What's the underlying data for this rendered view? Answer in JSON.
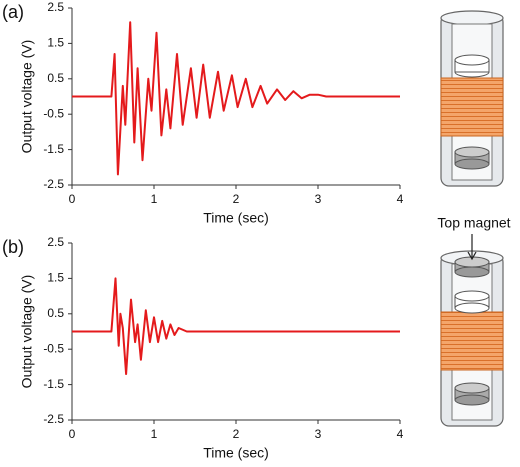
{
  "chart_data": [
    {
      "type": "line",
      "panel_label": "(a)",
      "x_label": "Time (sec)",
      "y_label": "Output voltage (V)",
      "xlim": [
        0,
        4
      ],
      "xticks": [
        0,
        1,
        2,
        3,
        4
      ],
      "ylim": [
        -2.5,
        2.5
      ],
      "yticks": [
        -2.5,
        -1.5,
        -0.5,
        0.5,
        1.5,
        2.5
      ],
      "grid": false,
      "color": "#e41a1c",
      "x": [
        0,
        0.48,
        0.52,
        0.56,
        0.62,
        0.65,
        0.71,
        0.76,
        0.8,
        0.86,
        0.93,
        0.97,
        1.03,
        1.09,
        1.15,
        1.2,
        1.28,
        1.35,
        1.45,
        1.52,
        1.6,
        1.68,
        1.78,
        1.85,
        1.95,
        2.02,
        2.12,
        2.2,
        2.3,
        2.38,
        2.5,
        2.6,
        2.7,
        2.8,
        2.9,
        3.0,
        3.1,
        4
      ],
      "values": [
        0,
        0,
        1.2,
        -2.2,
        0.3,
        -0.8,
        2.1,
        -1.3,
        0.8,
        -1.8,
        0.5,
        -0.4,
        1.8,
        -1.1,
        0.2,
        -0.9,
        1.2,
        -0.8,
        0.8,
        -0.6,
        0.9,
        -0.6,
        0.7,
        -0.4,
        0.6,
        -0.3,
        0.5,
        -0.3,
        0.3,
        -0.2,
        0.2,
        -0.1,
        0.15,
        -0.05,
        0.05,
        0.05,
        0,
        0
      ]
    },
    {
      "type": "line",
      "panel_label": "(b)",
      "x_label": "Time (sec)",
      "y_label": "Output voltage (V)",
      "annotation": "Top magnet",
      "xlim": [
        0,
        4
      ],
      "xticks": [
        0,
        1,
        2,
        3,
        4
      ],
      "ylim": [
        -2.5,
        2.5
      ],
      "yticks": [
        -2.5,
        -1.5,
        -0.5,
        0.5,
        1.5,
        2.5
      ],
      "grid": false,
      "color": "#e41a1c",
      "x": [
        0,
        0.48,
        0.53,
        0.57,
        0.59,
        0.62,
        0.66,
        0.72,
        0.77,
        0.8,
        0.84,
        0.9,
        0.95,
        1.0,
        1.05,
        1.1,
        1.15,
        1.2,
        1.25,
        1.3,
        1.4,
        4
      ],
      "values": [
        0,
        0,
        1.5,
        -0.4,
        0.5,
        0.1,
        -1.2,
        0.9,
        -0.3,
        0.2,
        -0.8,
        0.6,
        -0.3,
        0.4,
        -0.3,
        0.3,
        -0.2,
        0.2,
        -0.1,
        0.1,
        0,
        0
      ]
    }
  ]
}
